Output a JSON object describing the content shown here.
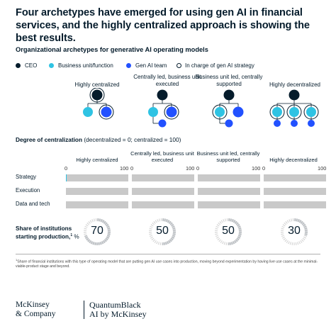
{
  "header": {
    "title": "Four archetypes have emerged for using gen AI in financial services, and the highly centralized approach is showing the best results.",
    "subtitle": "Organizational archetypes for generative AI operating models"
  },
  "legend": [
    {
      "label": "CEO",
      "color": "#051c2c",
      "style": "filled"
    },
    {
      "label": "Business unit/function",
      "color": "#2fc3e3",
      "style": "filled"
    },
    {
      "label": "Gen AI team",
      "color": "#2251ff",
      "style": "filled"
    },
    {
      "label": "In charge of gen AI strategy",
      "color": "#051c2c",
      "style": "outline"
    }
  ],
  "colors": {
    "ceo": "#051c2c",
    "business_unit": "#2fc3e3",
    "gen_ai_team": "#2251ff",
    "track": "#c9c9c9",
    "gauge_track": "#d8d8d8",
    "gauge_fill": "#051c2c"
  },
  "archetypes": [
    {
      "label": "Highly centralized"
    },
    {
      "label": "Centrally led, business unit executed"
    },
    {
      "label": "Business unit led, centrally supported"
    },
    {
      "label": "Highly decentralized"
    }
  ],
  "centralization": {
    "title_bold": "Degree of centralization",
    "title_note": "(decentralized = 0; centralized = 100)",
    "axis_min": "0",
    "axis_max": "100",
    "rows": [
      "Strategy",
      "Execution",
      "Data and tech"
    ]
  },
  "chart_data": {
    "type": "bar",
    "categories": [
      "Highly centralized",
      "Centrally led, business unit executed",
      "Business unit led, centrally supported",
      "Highly decentralized"
    ],
    "xlim": [
      0,
      100
    ],
    "series": [
      {
        "name": "Strategy",
        "values": [
          1,
          0,
          0,
          0
        ]
      },
      {
        "name": "Execution",
        "values": [
          0,
          0,
          0,
          0
        ]
      },
      {
        "name": "Data and tech",
        "values": [
          0,
          0,
          0,
          0
        ]
      }
    ],
    "share_label": "Share of institutions starting production,",
    "share_sup": "1",
    "share_unit": " %",
    "share_values": [
      70,
      50,
      50,
      30
    ]
  },
  "footnote": "Share of financial institutions with this type of operating model that are putting gen AI use cases into production, moving beyond experimentation by having live use cases at the minimal-viable-product stage and beyond.",
  "footnote_marker": "1",
  "branding": {
    "logo1_line1": "McKinsey",
    "logo1_line2": "& Company",
    "logo2_line1": "QuantumBlack",
    "logo2_line2": "AI by McKinsey"
  }
}
